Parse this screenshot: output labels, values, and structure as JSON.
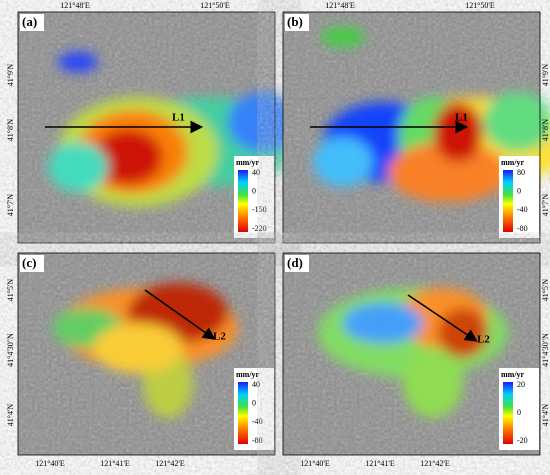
{
  "panels": [
    {
      "label": "(a)",
      "line_label": "L1",
      "unit": "mm/yr",
      "colorbar_ticks": [
        "40",
        "0",
        "-150",
        "-220"
      ],
      "top_labels": [
        "121°48'E",
        "121°50'E"
      ],
      "left_labels": [
        "41°9'N",
        "41°8'N",
        "41°7'N"
      ]
    },
    {
      "label": "(b)",
      "line_label": "L1",
      "unit": "mm/yr",
      "colorbar_ticks": [
        "80",
        "0",
        "-40",
        "-80"
      ],
      "top_labels": [
        "121°48'E",
        "121°50'E"
      ],
      "right_labels": [
        "41°9'N",
        "41°8'N",
        "41°7'N"
      ]
    },
    {
      "label": "(c)",
      "line_label": "L2",
      "unit": "mm/yr",
      "colorbar_ticks": [
        "40",
        "0",
        "-40",
        "-80"
      ],
      "bottom_labels": [
        "121°40'E",
        "121°41'E",
        "121°42'E"
      ],
      "left_labels": [
        "41°5'N",
        "41°4'30\"N",
        "41°4'N"
      ]
    },
    {
      "label": "(d)",
      "line_label": "L2",
      "unit": "mm/yr",
      "colorbar_ticks": [
        "20",
        "0",
        "-20"
      ],
      "bottom_labels": [
        "121°40'E",
        "121°41'E",
        "121°42'E"
      ],
      "right_labels": [
        "41°5'N",
        "41°4'30\"N",
        "41°4'N"
      ]
    }
  ]
}
